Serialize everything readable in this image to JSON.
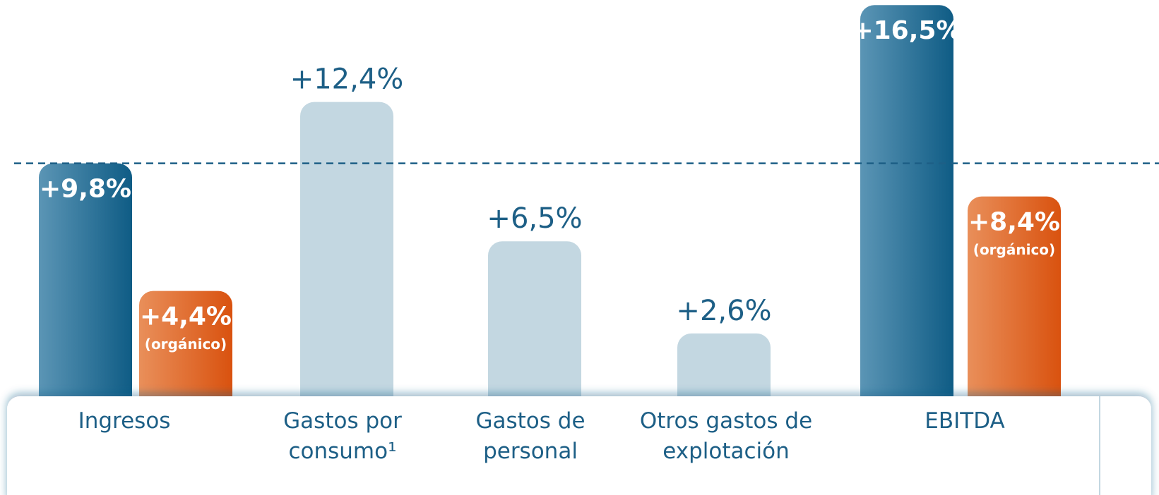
{
  "chart_data": {
    "type": "bar",
    "categories": [
      "Ingresos",
      "Gastos por consumo¹",
      "Gastos de personal",
      "Otros gastos de explotación",
      "EBITDA"
    ],
    "ylim": [
      0,
      16.7
    ],
    "reference_line": true,
    "series": [
      {
        "colors": [
          "#0f5c85",
          "#c3d7e1",
          "#c3d7e1",
          "#c3d7e1",
          "#0f5c85"
        ],
        "values": [
          9.8,
          12.4,
          6.5,
          2.6,
          16.5
        ],
        "value_labels": [
          "+9,8%",
          "+12,4%",
          "+6,5%",
          "+2,6%",
          "+16,5%"
        ]
      },
      {
        "name": "(orgánico)",
        "color": "#d9520f",
        "values": [
          4.4,
          null,
          null,
          null,
          8.4
        ],
        "value_labels": [
          "+4,4%",
          null,
          null,
          null,
          "+8,4%"
        ]
      }
    ]
  }
}
